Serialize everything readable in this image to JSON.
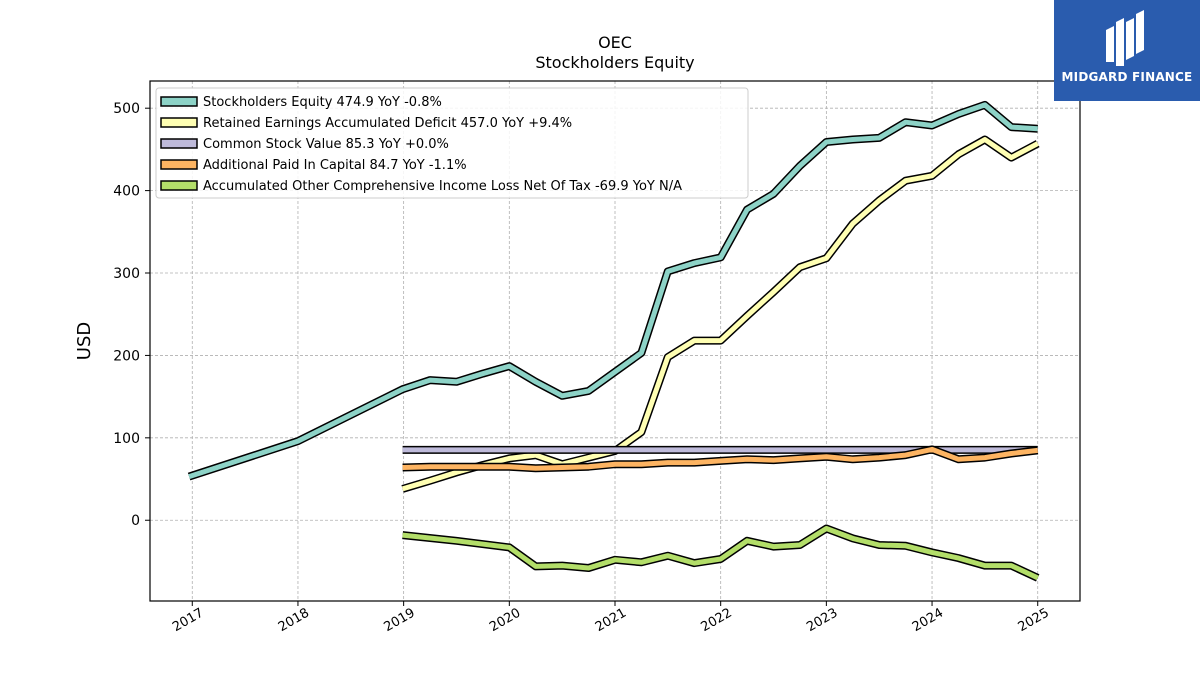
{
  "chart_data": {
    "type": "line",
    "title": "OEC",
    "subtitle": "Stockholders  Equity",
    "xlabel": "",
    "ylabel": "USD",
    "x_ticks": [
      "2017",
      "2018",
      "2019",
      "2020",
      "2021",
      "2022",
      "2023",
      "2024",
      "2025"
    ],
    "y_ticks": [
      0,
      100,
      200,
      300,
      400,
      500
    ],
    "xlim": [
      2016.6,
      2025.4
    ],
    "ylim": [
      -98,
      533
    ],
    "grid": true,
    "legend_position": "top-left",
    "series": [
      {
        "name": "Stockholders Equity  474.9 YoY -0.8%",
        "color": "#8dd3c7",
        "points": [
          [
            2016.97,
            53
          ],
          [
            2018.0,
            96
          ],
          [
            2018.99,
            159
          ],
          [
            2019.25,
            170
          ],
          [
            2019.5,
            168
          ],
          [
            2019.75,
            178
          ],
          [
            2020.0,
            187
          ],
          [
            2020.25,
            168
          ],
          [
            2020.5,
            151
          ],
          [
            2020.75,
            157
          ],
          [
            2021.0,
            180
          ],
          [
            2021.25,
            203
          ],
          [
            2021.5,
            302
          ],
          [
            2021.75,
            312
          ],
          [
            2022.0,
            319
          ],
          [
            2022.25,
            377
          ],
          [
            2022.5,
            396
          ],
          [
            2022.75,
            430
          ],
          [
            2023.0,
            459
          ],
          [
            2023.25,
            462
          ],
          [
            2023.5,
            464
          ],
          [
            2023.75,
            483
          ],
          [
            2024.0,
            479
          ],
          [
            2024.25,
            493
          ],
          [
            2024.5,
            504
          ],
          [
            2024.75,
            477
          ],
          [
            2025.0,
            475
          ]
        ]
      },
      {
        "name": "Retained Earnings Accumulated Deficit  457.0 YoY +9.4%",
        "color": "#ffffb3",
        "points": [
          [
            2018.99,
            38
          ],
          [
            2019.25,
            48
          ],
          [
            2019.5,
            58
          ],
          [
            2019.75,
            67
          ],
          [
            2020.0,
            75
          ],
          [
            2020.25,
            79
          ],
          [
            2020.5,
            68
          ],
          [
            2020.75,
            76
          ],
          [
            2021.0,
            84
          ],
          [
            2021.25,
            107
          ],
          [
            2021.5,
            198
          ],
          [
            2021.75,
            218
          ],
          [
            2022.0,
            218
          ],
          [
            2022.25,
            248
          ],
          [
            2022.5,
            277
          ],
          [
            2022.75,
            307
          ],
          [
            2023.0,
            318
          ],
          [
            2023.25,
            360
          ],
          [
            2023.5,
            388
          ],
          [
            2023.75,
            412
          ],
          [
            2024.0,
            418
          ],
          [
            2024.25,
            444
          ],
          [
            2024.5,
            462
          ],
          [
            2024.75,
            440
          ],
          [
            2025.0,
            457
          ]
        ]
      },
      {
        "name": "Common Stock Value  85.3 YoY +0.0%",
        "color": "#bebada",
        "points": [
          [
            2018.99,
            85.3
          ],
          [
            2019.25,
            85.3
          ],
          [
            2019.5,
            85.3
          ],
          [
            2019.75,
            85.3
          ],
          [
            2020.0,
            85.3
          ],
          [
            2020.25,
            85.3
          ],
          [
            2020.5,
            85.3
          ],
          [
            2020.75,
            85.3
          ],
          [
            2021.0,
            85.3
          ],
          [
            2021.25,
            85.3
          ],
          [
            2021.5,
            85.3
          ],
          [
            2021.75,
            85.3
          ],
          [
            2022.0,
            85.3
          ],
          [
            2022.25,
            85.3
          ],
          [
            2022.5,
            85.3
          ],
          [
            2022.75,
            85.3
          ],
          [
            2023.0,
            85.3
          ],
          [
            2023.25,
            85.3
          ],
          [
            2023.5,
            85.3
          ],
          [
            2023.75,
            85.3
          ],
          [
            2024.0,
            85.3
          ],
          [
            2024.25,
            85.3
          ],
          [
            2024.5,
            85.3
          ],
          [
            2024.75,
            85.3
          ],
          [
            2025.0,
            85.3
          ]
        ]
      },
      {
        "name": "Additional Paid In Capital  84.7 YoY -1.1%",
        "color": "#fdb462",
        "points": [
          [
            2018.99,
            64
          ],
          [
            2019.25,
            65
          ],
          [
            2019.5,
            65
          ],
          [
            2019.75,
            65
          ],
          [
            2020.0,
            65
          ],
          [
            2020.25,
            63
          ],
          [
            2020.5,
            64
          ],
          [
            2020.75,
            65
          ],
          [
            2021.0,
            68
          ],
          [
            2021.25,
            68
          ],
          [
            2021.5,
            70
          ],
          [
            2021.75,
            70
          ],
          [
            2022.0,
            72
          ],
          [
            2022.25,
            74
          ],
          [
            2022.5,
            73
          ],
          [
            2022.75,
            75
          ],
          [
            2023.0,
            77
          ],
          [
            2023.25,
            74
          ],
          [
            2023.5,
            76
          ],
          [
            2023.75,
            79
          ],
          [
            2024.0,
            86
          ],
          [
            2024.25,
            74
          ],
          [
            2024.5,
            76
          ],
          [
            2024.75,
            81
          ],
          [
            2025.0,
            84.7
          ]
        ]
      },
      {
        "name": "Accumulated Other Comprehensive Income Loss Net Of Tax  -69.9 YoY N/A",
        "color": "#b3de69",
        "points": [
          [
            2018.99,
            -18
          ],
          [
            2019.5,
            -25
          ],
          [
            2020.0,
            -33
          ],
          [
            2020.25,
            -56
          ],
          [
            2020.5,
            -55
          ],
          [
            2020.75,
            -58
          ],
          [
            2021.0,
            -48
          ],
          [
            2021.25,
            -51
          ],
          [
            2021.5,
            -43
          ],
          [
            2021.75,
            -52
          ],
          [
            2022.0,
            -47
          ],
          [
            2022.25,
            -25
          ],
          [
            2022.5,
            -32
          ],
          [
            2022.75,
            -30
          ],
          [
            2023.0,
            -10
          ],
          [
            2023.25,
            -22
          ],
          [
            2023.5,
            -30
          ],
          [
            2023.75,
            -31
          ],
          [
            2024.0,
            -39
          ],
          [
            2024.25,
            -46
          ],
          [
            2024.5,
            -55
          ],
          [
            2024.75,
            -55
          ],
          [
            2025.0,
            -70
          ]
        ]
      }
    ]
  },
  "logo": {
    "text": "MIDGARD FINANCE",
    "background": "#2a5cae"
  }
}
